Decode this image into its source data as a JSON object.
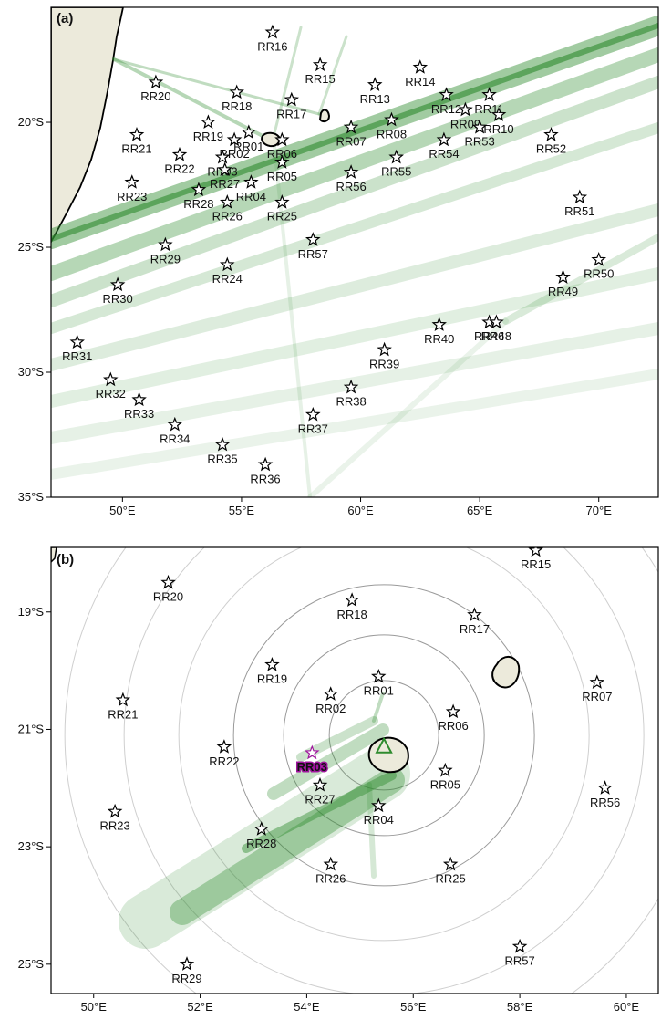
{
  "panel_a": {
    "label": "(a)",
    "lon_range": [
      47,
      72.5
    ],
    "lat_range": [
      -35,
      -15.4
    ],
    "lon_ticks": [
      {
        "v": 50,
        "t": "50°E"
      },
      {
        "v": 55,
        "t": "55°E"
      },
      {
        "v": 60,
        "t": "60°E"
      },
      {
        "v": 65,
        "t": "65°E"
      },
      {
        "v": 70,
        "t": "70°E"
      }
    ],
    "lat_ticks": [
      {
        "v": -20,
        "t": "20°S"
      },
      {
        "v": -25,
        "t": "25°S"
      },
      {
        "v": -30,
        "t": "30°S"
      },
      {
        "v": -35,
        "t": "35°S"
      }
    ],
    "stations": [
      {
        "name": "RR01",
        "lon": 55.3,
        "lat": -20.4
      },
      {
        "name": "RR02",
        "lon": 54.7,
        "lat": -20.7
      },
      {
        "name": "RR03",
        "lon": 54.2,
        "lat": -21.4
      },
      {
        "name": "RR04",
        "lon": 55.4,
        "lat": -22.4
      },
      {
        "name": "RR05",
        "lon": 56.7,
        "lat": -21.6
      },
      {
        "name": "RR06",
        "lon": 56.7,
        "lat": -20.7
      },
      {
        "name": "RR07",
        "lon": 59.6,
        "lat": -20.2
      },
      {
        "name": "RR08",
        "lon": 61.3,
        "lat": -19.9
      },
      {
        "name": "RR09",
        "lon": 64.4,
        "lat": -19.5
      },
      {
        "name": "RR10",
        "lon": 65.8,
        "lat": -19.7
      },
      {
        "name": "RR11",
        "lon": 65.4,
        "lat": -18.9
      },
      {
        "name": "RR12",
        "lon": 63.6,
        "lat": -18.9
      },
      {
        "name": "RR13",
        "lon": 60.6,
        "lat": -18.5
      },
      {
        "name": "RR14",
        "lon": 62.5,
        "lat": -17.8
      },
      {
        "name": "RR15",
        "lon": 58.3,
        "lat": -17.7
      },
      {
        "name": "RR16",
        "lon": 56.3,
        "lat": -16.4
      },
      {
        "name": "RR17",
        "lon": 57.1,
        "lat": -19.1
      },
      {
        "name": "RR18",
        "lon": 54.8,
        "lat": -18.8
      },
      {
        "name": "RR19",
        "lon": 53.6,
        "lat": -20.0
      },
      {
        "name": "RR20",
        "lon": 51.4,
        "lat": -18.4
      },
      {
        "name": "RR21",
        "lon": 50.6,
        "lat": -20.5
      },
      {
        "name": "RR22",
        "lon": 52.4,
        "lat": -21.3
      },
      {
        "name": "RR23",
        "lon": 50.4,
        "lat": -22.4
      },
      {
        "name": "RR24",
        "lon": 54.4,
        "lat": -25.7
      },
      {
        "name": "RR25",
        "lon": 56.7,
        "lat": -23.2
      },
      {
        "name": "RR26",
        "lon": 54.4,
        "lat": -23.2
      },
      {
        "name": "RR27",
        "lon": 54.3,
        "lat": -21.9
      },
      {
        "name": "RR28",
        "lon": 53.2,
        "lat": -22.7
      },
      {
        "name": "RR29",
        "lon": 51.8,
        "lat": -24.9
      },
      {
        "name": "RR30",
        "lon": 49.8,
        "lat": -26.5
      },
      {
        "name": "RR31",
        "lon": 48.1,
        "lat": -28.8
      },
      {
        "name": "RR32",
        "lon": 49.5,
        "lat": -30.3
      },
      {
        "name": "RR33",
        "lon": 50.7,
        "lat": -31.1
      },
      {
        "name": "RR34",
        "lon": 52.2,
        "lat": -32.1
      },
      {
        "name": "RR35",
        "lon": 54.2,
        "lat": -32.9
      },
      {
        "name": "RR36",
        "lon": 56.0,
        "lat": -33.7
      },
      {
        "name": "RR37",
        "lon": 58.0,
        "lat": -31.7
      },
      {
        "name": "RR38",
        "lon": 59.6,
        "lat": -30.6
      },
      {
        "name": "RR39",
        "lon": 61.0,
        "lat": -29.1
      },
      {
        "name": "RR40",
        "lon": 63.3,
        "lat": -28.1
      },
      {
        "name": "RR46",
        "lon": 65.4,
        "lat": -28.0
      },
      {
        "name": "RR48",
        "lon": 65.7,
        "lat": -28.0
      },
      {
        "name": "RR49",
        "lon": 68.5,
        "lat": -26.2
      },
      {
        "name": "RR50",
        "lon": 70.0,
        "lat": -25.5
      },
      {
        "name": "RR51",
        "lon": 69.2,
        "lat": -23.0
      },
      {
        "name": "RR52",
        "lon": 68.0,
        "lat": -20.5
      },
      {
        "name": "RR53",
        "lon": 65.0,
        "lat": -20.2
      },
      {
        "name": "RR54",
        "lon": 63.5,
        "lat": -20.7
      },
      {
        "name": "RR55",
        "lon": 61.5,
        "lat": -21.4
      },
      {
        "name": "RR56",
        "lon": 59.6,
        "lat": -22.0
      },
      {
        "name": "RR57",
        "lon": 58.0,
        "lat": -24.7
      }
    ]
  },
  "panel_b": {
    "label": "(b)",
    "lon_range": [
      49.2,
      60.6
    ],
    "lat_range": [
      -25.5,
      -17.9
    ],
    "lon_ticks": [
      {
        "v": 50,
        "t": "50°E"
      },
      {
        "v": 52,
        "t": "52°E"
      },
      {
        "v": 54,
        "t": "54°E"
      },
      {
        "v": 56,
        "t": "56°E"
      },
      {
        "v": 58,
        "t": "58°E"
      },
      {
        "v": 60,
        "t": "60°E"
      }
    ],
    "lat_ticks": [
      {
        "v": -19,
        "t": "19°S"
      },
      {
        "v": -21,
        "t": "21°S"
      },
      {
        "v": -23,
        "t": "23°S"
      },
      {
        "v": -25,
        "t": "25°S"
      }
    ],
    "highlight_station": "RR03",
    "highlight_color": "#a0149e",
    "triangle_color": "#2e8b2e",
    "stations": [
      {
        "name": "RR01",
        "lon": 55.35,
        "lat": -20.1
      },
      {
        "name": "RR02",
        "lon": 54.45,
        "lat": -20.4
      },
      {
        "name": "RR03",
        "lon": 54.1,
        "lat": -21.4
      },
      {
        "name": "RR04",
        "lon": 55.35,
        "lat": -22.3
      },
      {
        "name": "RR05",
        "lon": 56.6,
        "lat": -21.7
      },
      {
        "name": "RR06",
        "lon": 56.75,
        "lat": -20.7
      },
      {
        "name": "RR07",
        "lon": 59.45,
        "lat": -20.2
      },
      {
        "name": "RR15",
        "lon": 58.3,
        "lat": -17.95
      },
      {
        "name": "RR17",
        "lon": 57.15,
        "lat": -19.05
      },
      {
        "name": "RR18",
        "lon": 54.85,
        "lat": -18.8
      },
      {
        "name": "RR19",
        "lon": 53.35,
        "lat": -19.9
      },
      {
        "name": "RR20",
        "lon": 51.4,
        "lat": -18.5
      },
      {
        "name": "RR21",
        "lon": 50.55,
        "lat": -20.5
      },
      {
        "name": "RR22",
        "lon": 52.45,
        "lat": -21.3
      },
      {
        "name": "RR23",
        "lon": 50.4,
        "lat": -22.4
      },
      {
        "name": "RR25",
        "lon": 56.7,
        "lat": -23.3
      },
      {
        "name": "RR26",
        "lon": 54.45,
        "lat": -23.3
      },
      {
        "name": "RR27",
        "lon": 54.25,
        "lat": -21.95
      },
      {
        "name": "RR28",
        "lon": 53.15,
        "lat": -22.7
      },
      {
        "name": "RR29",
        "lon": 51.75,
        "lat": -25.0
      },
      {
        "name": "RR56",
        "lon": 59.6,
        "lat": -22.0
      },
      {
        "name": "RR57",
        "lon": 58.0,
        "lat": -24.7
      }
    ]
  }
}
